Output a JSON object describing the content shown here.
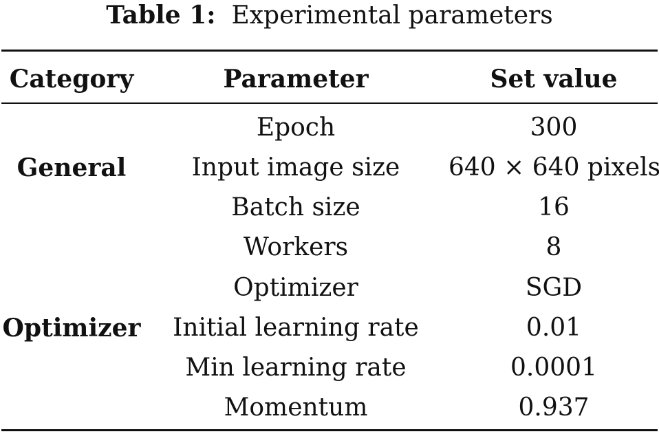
{
  "caption": {
    "label": "Table 1:",
    "text": "Experimental parameters"
  },
  "table": {
    "headers": [
      "Category",
      "Parameter",
      "Set value"
    ],
    "groups": [
      {
        "category": "General",
        "rows": [
          {
            "parameter": "Epoch",
            "value": "300"
          },
          {
            "parameter": "Input image size",
            "value": "640 × 640 pixels"
          },
          {
            "parameter": "Batch size",
            "value": "16"
          },
          {
            "parameter": "Workers",
            "value": "8"
          }
        ]
      },
      {
        "category": "Optimizer",
        "rows": [
          {
            "parameter": "Optimizer",
            "value": "SGD"
          },
          {
            "parameter": "Initial learning rate",
            "value": "0.01"
          },
          {
            "parameter": "Min learning rate",
            "value": "0.0001"
          },
          {
            "parameter": "Momentum",
            "value": "0.937"
          }
        ]
      }
    ]
  }
}
